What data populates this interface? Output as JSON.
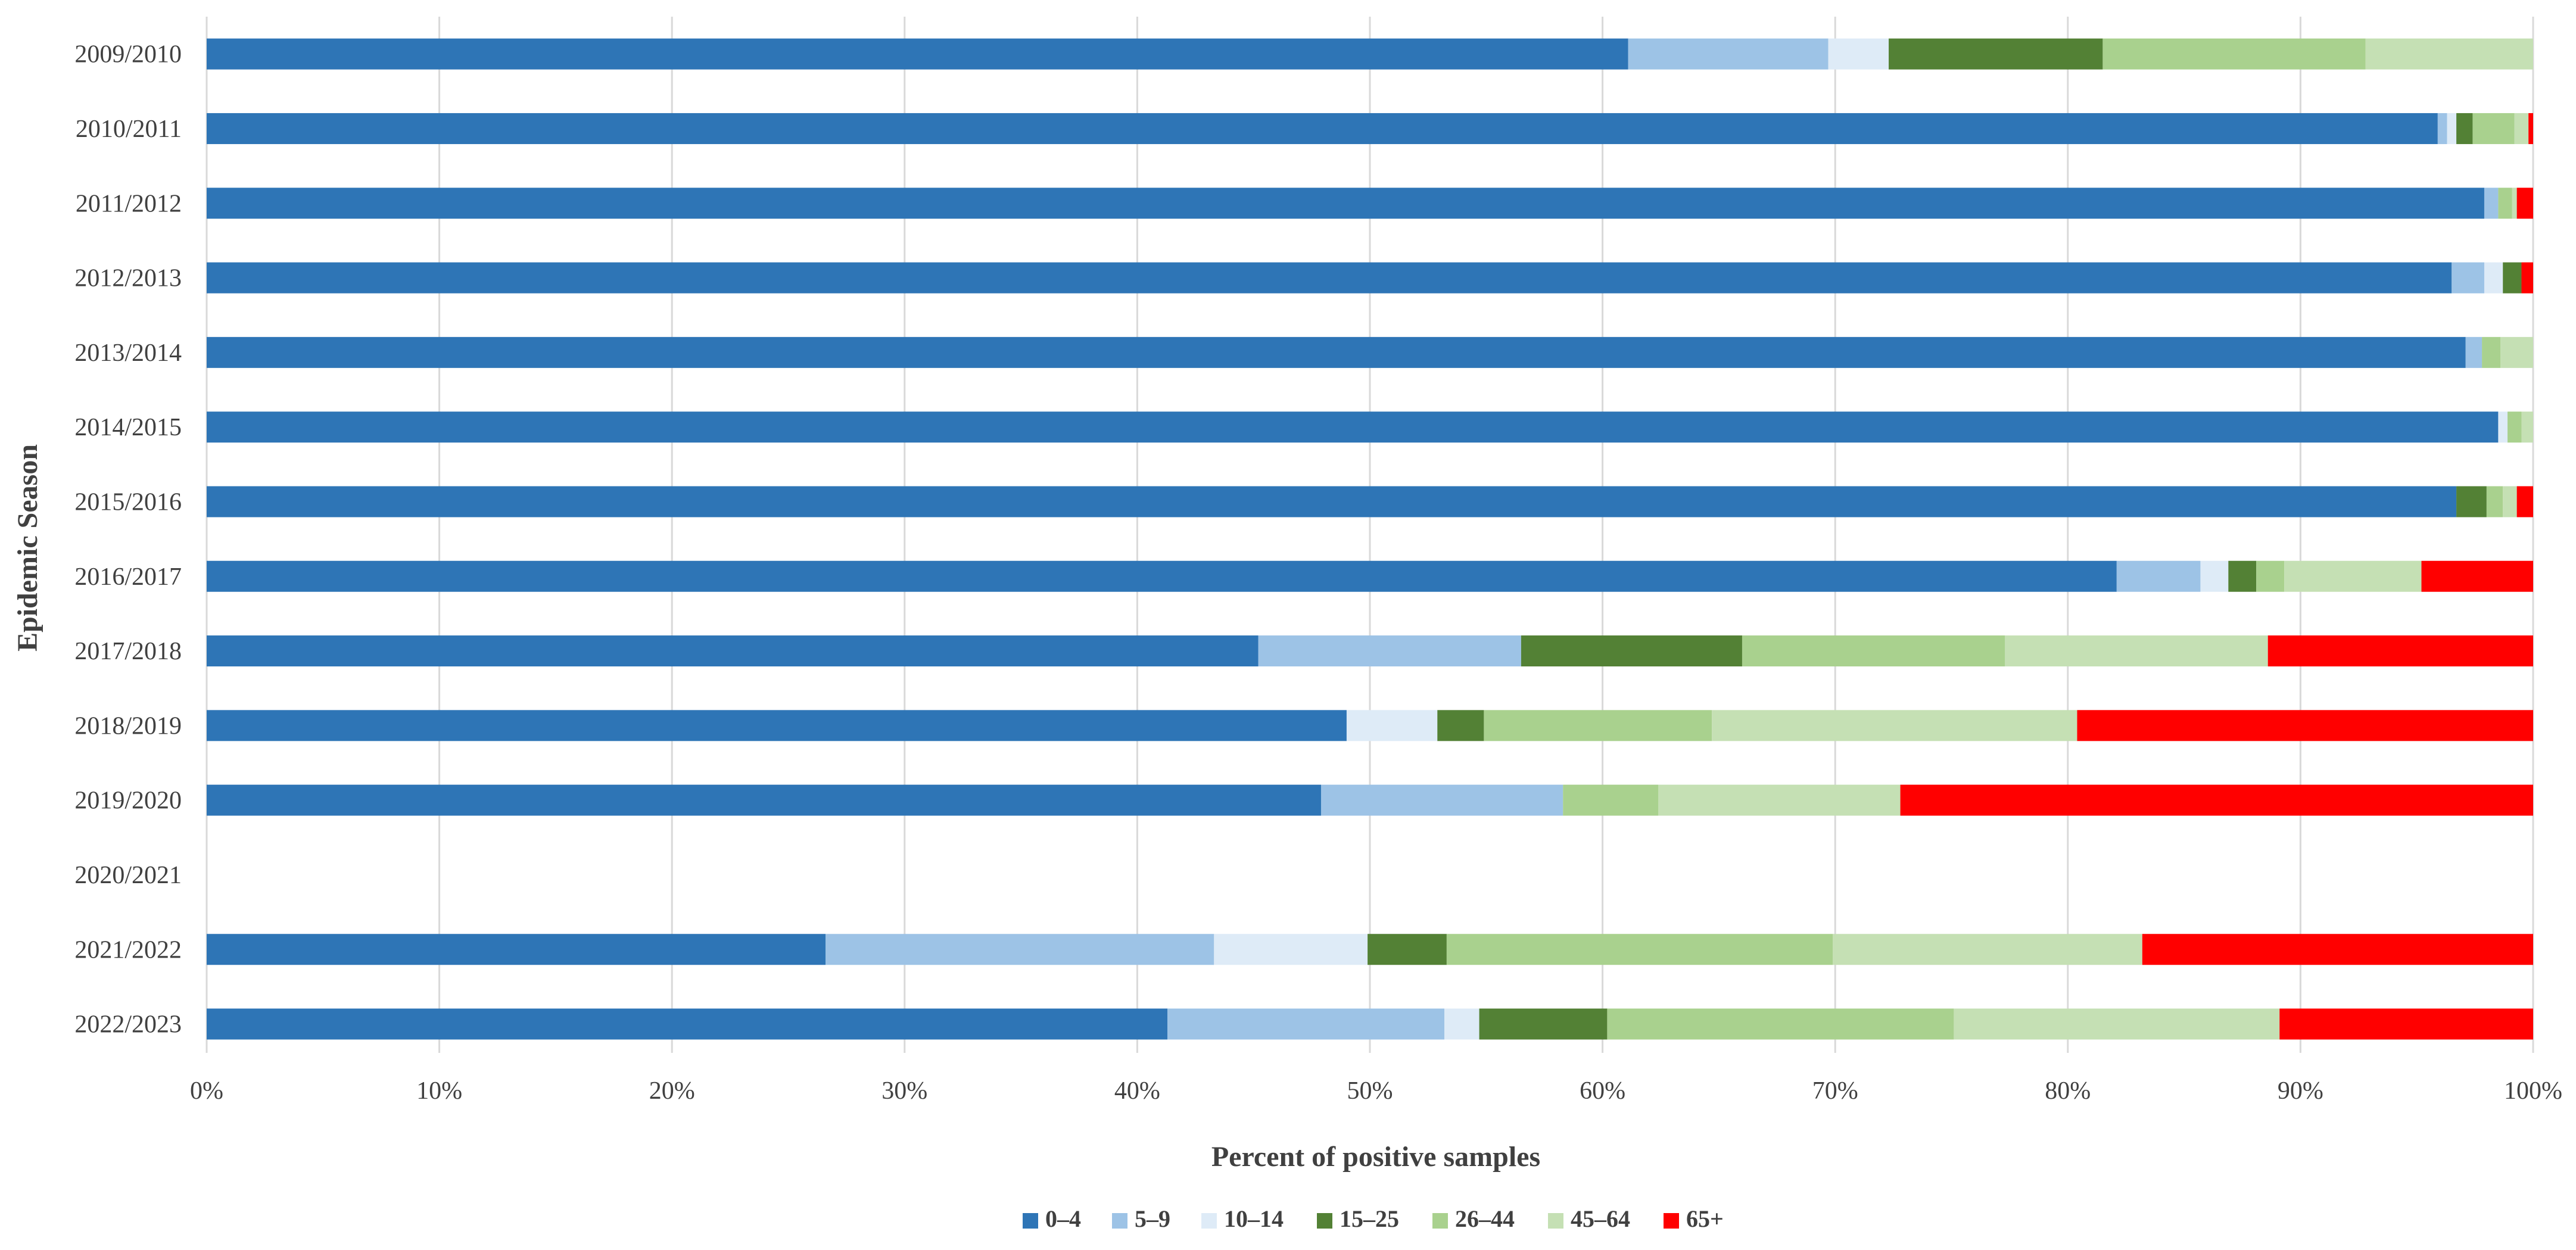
{
  "chart_data": {
    "type": "bar",
    "orientation": "horizontal",
    "stacked": true,
    "normalized": true,
    "title": "",
    "xlabel": "Percent of positive samples",
    "ylabel": "Epidemic Season",
    "xlim": [
      0,
      100
    ],
    "x_ticks": [
      "0%",
      "10%",
      "20%",
      "30%",
      "40%",
      "50%",
      "60%",
      "70%",
      "80%",
      "90%",
      "100%"
    ],
    "legend_position": "bottom",
    "grid": true,
    "categories": [
      "2009/2010",
      "2010/2011",
      "2011/2012",
      "2012/2013",
      "2013/2014",
      "2014/2015",
      "2015/2016",
      "2016/2017",
      "2017/2018",
      "2018/2019",
      "2019/2020",
      "2020/2021",
      "2021/2022",
      "2022/2023"
    ],
    "series": [
      {
        "name": "0–4",
        "color": "#2e75b6",
        "values": [
          61.1,
          95.9,
          97.9,
          96.5,
          97.1,
          98.5,
          96.7,
          82.1,
          45.2,
          49.0,
          47.9,
          0,
          26.6,
          41.3
        ]
      },
      {
        "name": "5–9",
        "color": "#9dc3e6",
        "values": [
          8.6,
          0.4,
          0.6,
          1.4,
          0.7,
          0,
          0,
          3.6,
          11.3,
          0,
          10.4,
          0,
          16.7,
          11.9
        ]
      },
      {
        "name": "10–14",
        "color": "#deebf7",
        "values": [
          2.6,
          0.4,
          0,
          0.8,
          0,
          0.4,
          0,
          1.2,
          0,
          3.9,
          0,
          0,
          6.6,
          1.5
        ]
      },
      {
        "name": "15–25",
        "color": "#538135",
        "values": [
          9.2,
          0.7,
          0,
          0.8,
          0,
          0,
          1.3,
          1.2,
          9.5,
          2.0,
          0,
          0,
          3.4,
          5.5
        ]
      },
      {
        "name": "26–44",
        "color": "#a9d18e",
        "values": [
          11.3,
          1.8,
          0.6,
          0,
          0.8,
          0.6,
          0.7,
          1.2,
          11.3,
          9.8,
          4.1,
          0,
          16.6,
          14.9
        ]
      },
      {
        "name": "45–64",
        "color": "#c5e0b4",
        "values": [
          7.2,
          0.6,
          0.2,
          0,
          1.4,
          0.5,
          0.6,
          5.9,
          11.3,
          15.7,
          10.4,
          0,
          13.3,
          14.0
        ]
      },
      {
        "name": "65+",
        "color": "#ff0000",
        "values": [
          0,
          0.2,
          0.7,
          0.5,
          0,
          0,
          0.7,
          4.8,
          11.4,
          19.6,
          27.2,
          0,
          16.8,
          10.9
        ]
      }
    ]
  }
}
